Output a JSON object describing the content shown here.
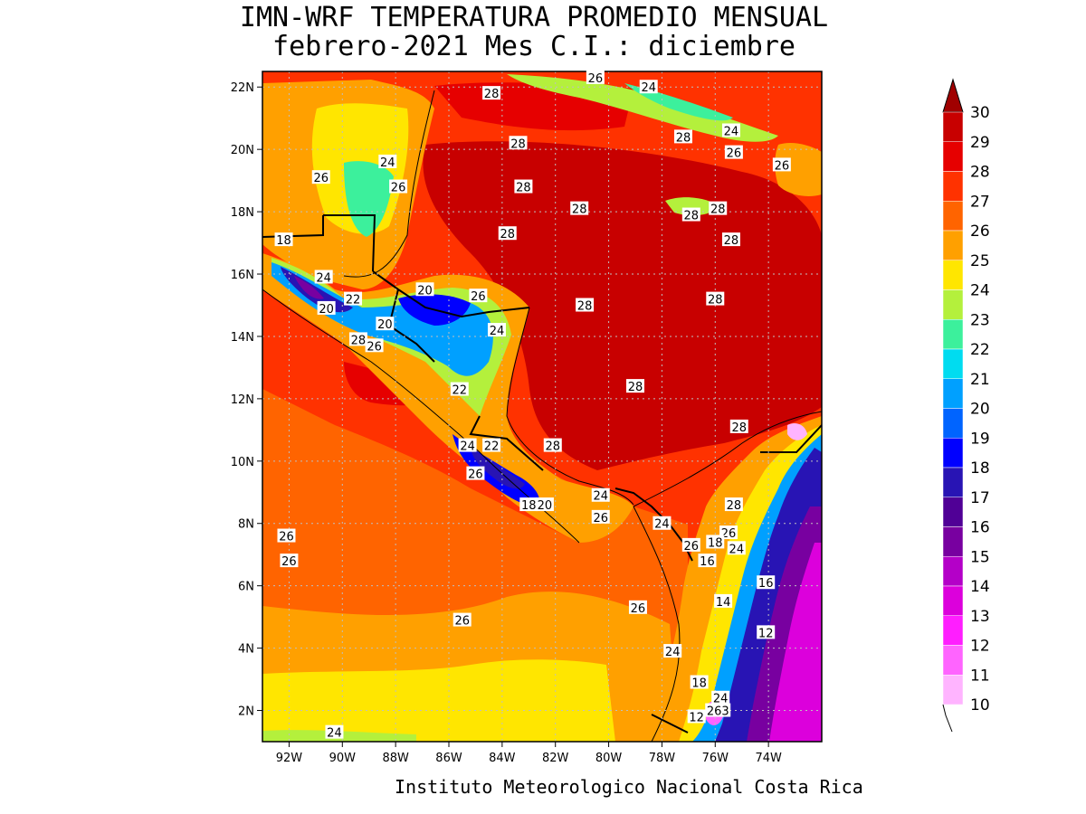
{
  "title": {
    "line1": "IMN-WRF  TEMPERATURA PROMEDIO MENSUAL",
    "line2": "febrero-2021 Mes C.I.: diciembre"
  },
  "credit": "Instituto Meteorologico Nacional Costa Rica",
  "axes": {
    "lon_range": [
      -93,
      -72
    ],
    "lat_range": [
      1,
      22.5
    ],
    "lat_ticks": [
      {
        "v": 22,
        "label": "22N"
      },
      {
        "v": 20,
        "label": "20N"
      },
      {
        "v": 18,
        "label": "18N"
      },
      {
        "v": 16,
        "label": "16N"
      },
      {
        "v": 14,
        "label": "14N"
      },
      {
        "v": 12,
        "label": "12N"
      },
      {
        "v": 10,
        "label": "10N"
      },
      {
        "v": 8,
        "label": "8N"
      },
      {
        "v": 6,
        "label": "6N"
      },
      {
        "v": 4,
        "label": "4N"
      },
      {
        "v": 2,
        "label": "2N"
      }
    ],
    "lon_ticks": [
      {
        "v": -92,
        "label": "92W"
      },
      {
        "v": -90,
        "label": "90W"
      },
      {
        "v": -88,
        "label": "88W"
      },
      {
        "v": -86,
        "label": "86W"
      },
      {
        "v": -84,
        "label": "84W"
      },
      {
        "v": -82,
        "label": "82W"
      },
      {
        "v": -80,
        "label": "80W"
      },
      {
        "v": -78,
        "label": "78W"
      },
      {
        "v": -76,
        "label": "76W"
      },
      {
        "v": -74,
        "label": "74W"
      }
    ],
    "grid": "dotted"
  },
  "colorbar": {
    "levels": [
      "30",
      "29",
      "28",
      "27",
      "26",
      "25",
      "24",
      "23",
      "22",
      "21",
      "20",
      "19",
      "18",
      "17",
      "16",
      "15",
      "14",
      "13",
      "12",
      "11",
      "10"
    ],
    "colors": [
      "#a00000",
      "#c80000",
      "#e60000",
      "#ff3200",
      "#ff6400",
      "#ffa000",
      "#ffe600",
      "#b4f03c",
      "#3cf09c",
      "#00dcf0",
      "#00a0ff",
      "#0064ff",
      "#0000ff",
      "#2814b4",
      "#500096",
      "#7800a0",
      "#b400c8",
      "#dc00dc",
      "#ff1eff",
      "#ff64ff",
      "#ffb4ff"
    ]
  },
  "contour_labels": [
    {
      "t": "26",
      "lon": -80.5,
      "lat": 22.3
    },
    {
      "t": "24",
      "lon": -78.5,
      "lat": 22.0
    },
    {
      "t": "28",
      "lon": -84.4,
      "lat": 21.8
    },
    {
      "t": "24",
      "lon": -75.4,
      "lat": 20.6
    },
    {
      "t": "28",
      "lon": -77.2,
      "lat": 20.4
    },
    {
      "t": "26",
      "lon": -75.3,
      "lat": 19.9
    },
    {
      "t": "28",
      "lon": -83.4,
      "lat": 20.2
    },
    {
      "t": "26",
      "lon": -73.5,
      "lat": 19.5
    },
    {
      "t": "24",
      "lon": -88.3,
      "lat": 19.6
    },
    {
      "t": "26",
      "lon": -90.8,
      "lat": 19.1
    },
    {
      "t": "26",
      "lon": -87.9,
      "lat": 18.8
    },
    {
      "t": "28",
      "lon": -83.2,
      "lat": 18.8
    },
    {
      "t": "28",
      "lon": -81.1,
      "lat": 18.1
    },
    {
      "t": "28",
      "lon": -75.9,
      "lat": 18.1
    },
    {
      "t": "28",
      "lon": -76.9,
      "lat": 17.9
    },
    {
      "t": "28",
      "lon": -83.8,
      "lat": 17.3
    },
    {
      "t": "28",
      "lon": -75.4,
      "lat": 17.1
    },
    {
      "t": "18",
      "lon": -92.2,
      "lat": 17.1
    },
    {
      "t": "24",
      "lon": -90.7,
      "lat": 15.9
    },
    {
      "t": "20",
      "lon": -86.9,
      "lat": 15.5
    },
    {
      "t": "26",
      "lon": -84.9,
      "lat": 15.3
    },
    {
      "t": "28",
      "lon": -76.0,
      "lat": 15.2
    },
    {
      "t": "22",
      "lon": -89.6,
      "lat": 15.2
    },
    {
      "t": "20",
      "lon": -90.6,
      "lat": 14.9
    },
    {
      "t": "28",
      "lon": -80.9,
      "lat": 15.0
    },
    {
      "t": "20",
      "lon": -88.4,
      "lat": 14.4
    },
    {
      "t": "24",
      "lon": -84.2,
      "lat": 14.2
    },
    {
      "t": "28",
      "lon": -89.4,
      "lat": 13.9
    },
    {
      "t": "26",
      "lon": -88.8,
      "lat": 13.7
    },
    {
      "t": "28",
      "lon": -79.0,
      "lat": 12.4
    },
    {
      "t": "22",
      "lon": -85.6,
      "lat": 12.3
    },
    {
      "t": "28",
      "lon": -75.1,
      "lat": 11.1
    },
    {
      "t": "28",
      "lon": -82.1,
      "lat": 10.5
    },
    {
      "t": "24",
      "lon": -85.3,
      "lat": 10.5
    },
    {
      "t": "22",
      "lon": -84.4,
      "lat": 10.5
    },
    {
      "t": "26",
      "lon": -85.0,
      "lat": 9.6
    },
    {
      "t": "24",
      "lon": -80.3,
      "lat": 8.9
    },
    {
      "t": "18",
      "lon": -83.0,
      "lat": 8.6
    },
    {
      "t": "20",
      "lon": -82.4,
      "lat": 8.6
    },
    {
      "t": "28",
      "lon": -75.3,
      "lat": 8.6
    },
    {
      "t": "26",
      "lon": -80.3,
      "lat": 8.2
    },
    {
      "t": "24",
      "lon": -78.0,
      "lat": 8.0
    },
    {
      "t": "26",
      "lon": -92.1,
      "lat": 7.6
    },
    {
      "t": "26",
      "lon": -75.5,
      "lat": 7.7
    },
    {
      "t": "18",
      "lon": -76.0,
      "lat": 7.4
    },
    {
      "t": "26",
      "lon": -76.9,
      "lat": 7.3
    },
    {
      "t": "24",
      "lon": -75.2,
      "lat": 7.2
    },
    {
      "t": "26",
      "lon": -92.0,
      "lat": 6.8
    },
    {
      "t": "16",
      "lon": -76.3,
      "lat": 6.8
    },
    {
      "t": "16",
      "lon": -74.1,
      "lat": 6.1
    },
    {
      "t": "14",
      "lon": -75.7,
      "lat": 5.5
    },
    {
      "t": "26",
      "lon": -78.9,
      "lat": 5.3
    },
    {
      "t": "26",
      "lon": -85.5,
      "lat": 4.9
    },
    {
      "t": "12",
      "lon": -74.1,
      "lat": 4.5
    },
    {
      "t": "24",
      "lon": -77.6,
      "lat": 3.9
    },
    {
      "t": "18",
      "lon": -76.6,
      "lat": 2.9
    },
    {
      "t": "24",
      "lon": -75.8,
      "lat": 2.4
    },
    {
      "t": "12",
      "lon": -76.7,
      "lat": 1.8
    },
    {
      "t": "263",
      "lon": -75.9,
      "lat": 2.0
    },
    {
      "t": "24",
      "lon": -90.3,
      "lat": 1.3
    }
  ]
}
